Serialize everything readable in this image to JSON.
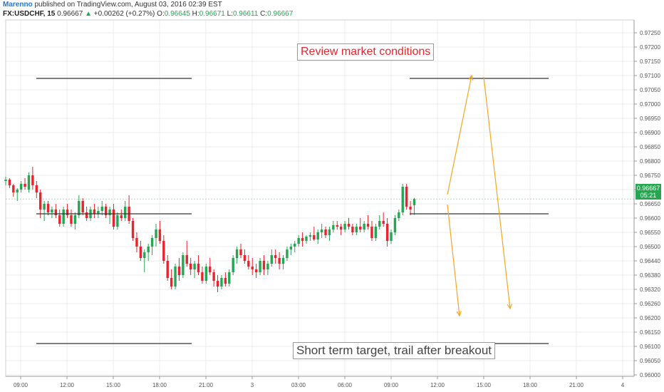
{
  "header": {
    "author": "Marenno",
    "published": " published on TradingView.com, August 03, 2016 02:39 EST",
    "symbol": "FX:USDCHF, 15",
    "last": "0.96667",
    "change": "+0.00262 (+0.27%)",
    "o_label": "O:",
    "o": "0.96645",
    "h_label": "H:",
    "h": "0.96671",
    "l_label": "L:",
    "l": "0.96611",
    "c_label": "C:",
    "c": "0.96667"
  },
  "annotations": {
    "top": "Review market conditions",
    "bottom": "Short term target, trail after breakout"
  },
  "price_label": {
    "value": "0.96667",
    "timer": "05:21"
  },
  "colors": {
    "up": "#26a651",
    "down": "#e6252d",
    "arrow": "#f5a623",
    "hline": "#333333",
    "grid": "#eeeeee"
  },
  "chart_data": {
    "type": "candlestick",
    "symbol": "FX:USDCHF",
    "interval": "15",
    "y_ticks": [
      "0.97250",
      "0.97200",
      "0.97150",
      "0.97100",
      "0.97050",
      "0.97000",
      "0.96950",
      "0.96900",
      "0.96850",
      "0.96800",
      "0.96750",
      "0.96700",
      "0.96650",
      "0.96600",
      "0.96550",
      "0.96500",
      "0.96440",
      "0.96380",
      "0.96320",
      "0.96260",
      "0.96200",
      "0.96150",
      "0.96100",
      "0.96050",
      "0.96000"
    ],
    "x_ticks": [
      "09:00",
      "12:00",
      "15:00",
      "18:00",
      "21:00",
      "3",
      "03:00",
      "06:00",
      "09:00",
      "12:00",
      "15:00",
      "18:00",
      "21:00",
      "4"
    ],
    "ohlc": [
      [
        0.9673,
        0.96745,
        0.96715,
        0.96735
      ],
      [
        0.96735,
        0.9674,
        0.96705,
        0.96715
      ],
      [
        0.96715,
        0.9672,
        0.96675,
        0.9669
      ],
      [
        0.9669,
        0.96705,
        0.9666,
        0.967
      ],
      [
        0.967,
        0.9673,
        0.9669,
        0.9672
      ],
      [
        0.9672,
        0.9674,
        0.967,
        0.9671
      ],
      [
        0.967,
        0.9676,
        0.9669,
        0.9675
      ],
      [
        0.9675,
        0.9678,
        0.967,
        0.96715
      ],
      [
        0.96715,
        0.9673,
        0.9667,
        0.9669
      ],
      [
        0.9669,
        0.967,
        0.966,
        0.9663
      ],
      [
        0.9663,
        0.9666,
        0.9659,
        0.9665
      ],
      [
        0.9665,
        0.9666,
        0.9661,
        0.9662
      ],
      [
        0.9662,
        0.9664,
        0.966,
        0.9663
      ],
      [
        0.9663,
        0.9665,
        0.966,
        0.9661
      ],
      [
        0.9661,
        0.9663,
        0.9657,
        0.9658
      ],
      [
        0.9658,
        0.9664,
        0.9657,
        0.9663
      ],
      [
        0.9663,
        0.9665,
        0.966,
        0.9661
      ],
      [
        0.9661,
        0.9663,
        0.9657,
        0.9658
      ],
      [
        0.9658,
        0.9662,
        0.9656,
        0.9661
      ],
      [
        0.9661,
        0.9668,
        0.966,
        0.9666
      ],
      [
        0.9666,
        0.9667,
        0.9661,
        0.9662
      ],
      [
        0.9662,
        0.9664,
        0.9659,
        0.966
      ],
      [
        0.966,
        0.9664,
        0.9659,
        0.9663
      ],
      [
        0.9663,
        0.9665,
        0.966,
        0.96615
      ],
      [
        0.96615,
        0.9664,
        0.966,
        0.96625
      ],
      [
        0.96625,
        0.9666,
        0.9661,
        0.9664
      ],
      [
        0.9664,
        0.9665,
        0.966,
        0.9661
      ],
      [
        0.9661,
        0.9664,
        0.9658,
        0.9663
      ],
      [
        0.9663,
        0.9665,
        0.9656,
        0.9657
      ],
      [
        0.9657,
        0.9662,
        0.9656,
        0.9661
      ],
      [
        0.9661,
        0.9663,
        0.9659,
        0.966
      ],
      [
        0.966,
        0.9666,
        0.9659,
        0.9664
      ],
      [
        0.9664,
        0.9668,
        0.9658,
        0.9659
      ],
      [
        0.9659,
        0.966,
        0.9652,
        0.9653
      ],
      [
        0.9653,
        0.9655,
        0.9648,
        0.965
      ],
      [
        0.965,
        0.9652,
        0.9645,
        0.9646
      ],
      [
        0.9646,
        0.9649,
        0.9641,
        0.9648
      ],
      [
        0.9648,
        0.9651,
        0.9645,
        0.965
      ],
      [
        0.965,
        0.9654,
        0.9647,
        0.9653
      ],
      [
        0.9653,
        0.9658,
        0.965,
        0.9656
      ],
      [
        0.9656,
        0.9659,
        0.9651,
        0.9652
      ],
      [
        0.9652,
        0.9654,
        0.9644,
        0.9645
      ],
      [
        0.9645,
        0.9647,
        0.9638,
        0.9639
      ],
      [
        0.9639,
        0.9642,
        0.9635,
        0.9636
      ],
      [
        0.9636,
        0.9644,
        0.9635,
        0.9643
      ],
      [
        0.9643,
        0.9646,
        0.9638,
        0.964
      ],
      [
        0.964,
        0.9648,
        0.9639,
        0.9647
      ],
      [
        0.9647,
        0.9652,
        0.9643,
        0.9644
      ],
      [
        0.9644,
        0.9646,
        0.964,
        0.9642
      ],
      [
        0.9642,
        0.9645,
        0.9639,
        0.9644
      ],
      [
        0.9644,
        0.9647,
        0.964,
        0.9641
      ],
      [
        0.9641,
        0.9643,
        0.9637,
        0.9638
      ],
      [
        0.9638,
        0.9644,
        0.9637,
        0.9643
      ],
      [
        0.9643,
        0.9646,
        0.964,
        0.9641
      ],
      [
        0.9641,
        0.9642,
        0.9636,
        0.9638
      ],
      [
        0.9638,
        0.964,
        0.9634,
        0.9636
      ],
      [
        0.9636,
        0.964,
        0.9635,
        0.9639
      ],
      [
        0.9639,
        0.9641,
        0.9636,
        0.9637
      ],
      [
        0.9637,
        0.9642,
        0.9636,
        0.9641
      ],
      [
        0.9641,
        0.9647,
        0.964,
        0.9646
      ],
      [
        0.9646,
        0.965,
        0.9644,
        0.9649
      ],
      [
        0.9649,
        0.9651,
        0.9646,
        0.9647
      ],
      [
        0.9647,
        0.9649,
        0.9644,
        0.9645
      ],
      [
        0.9645,
        0.9647,
        0.9642,
        0.9643
      ],
      [
        0.9643,
        0.9646,
        0.964,
        0.9642
      ],
      [
        0.9642,
        0.9644,
        0.9639,
        0.9641
      ],
      [
        0.9641,
        0.9646,
        0.964,
        0.9645
      ],
      [
        0.9645,
        0.9647,
        0.964,
        0.9642
      ],
      [
        0.9642,
        0.9645,
        0.964,
        0.9644
      ],
      [
        0.9644,
        0.9649,
        0.9643,
        0.9647
      ],
      [
        0.9647,
        0.9649,
        0.9644,
        0.9646
      ],
      [
        0.9646,
        0.9648,
        0.9642,
        0.9644
      ],
      [
        0.9644,
        0.9647,
        0.9642,
        0.9646
      ],
      [
        0.9646,
        0.965,
        0.9645,
        0.9649
      ],
      [
        0.9649,
        0.9651,
        0.9647,
        0.965
      ],
      [
        0.965,
        0.9652,
        0.9648,
        0.9651
      ],
      [
        0.9651,
        0.9654,
        0.965,
        0.9653
      ],
      [
        0.9653,
        0.9655,
        0.965,
        0.9652
      ],
      [
        0.9652,
        0.9654,
        0.9651,
        0.96535
      ],
      [
        0.96535,
        0.9655,
        0.9652,
        0.9654
      ],
      [
        0.9654,
        0.9657,
        0.9652,
        0.96525
      ],
      [
        0.96525,
        0.9656,
        0.9651,
        0.9655
      ],
      [
        0.9655,
        0.9658,
        0.9653,
        0.9656
      ],
      [
        0.9656,
        0.9657,
        0.9653,
        0.9654
      ],
      [
        0.9654,
        0.9657,
        0.9652,
        0.9656
      ],
      [
        0.9656,
        0.9659,
        0.9655,
        0.96575
      ],
      [
        0.96575,
        0.9659,
        0.9656,
        0.9657
      ],
      [
        0.9657,
        0.9658,
        0.9654,
        0.9656
      ],
      [
        0.9656,
        0.9659,
        0.9655,
        0.9658
      ],
      [
        0.9658,
        0.966,
        0.9656,
        0.9657
      ],
      [
        0.9657,
        0.9658,
        0.9654,
        0.9655
      ],
      [
        0.9655,
        0.9658,
        0.9654,
        0.9657
      ],
      [
        0.9657,
        0.966,
        0.9655,
        0.9656
      ],
      [
        0.9656,
        0.9659,
        0.9655,
        0.9658
      ],
      [
        0.9658,
        0.9661,
        0.9656,
        0.9657
      ],
      [
        0.9657,
        0.9659,
        0.9652,
        0.9653
      ],
      [
        0.9653,
        0.9658,
        0.9652,
        0.9657
      ],
      [
        0.9657,
        0.9661,
        0.9656,
        0.9659
      ],
      [
        0.9659,
        0.9662,
        0.9657,
        0.9658
      ],
      [
        0.9658,
        0.966,
        0.965,
        0.9652
      ],
      [
        0.9652,
        0.9656,
        0.9651,
        0.9655
      ],
      [
        0.9655,
        0.9661,
        0.9654,
        0.966
      ],
      [
        0.966,
        0.9663,
        0.9659,
        0.9662
      ],
      [
        0.9662,
        0.9672,
        0.9661,
        0.9671
      ],
      [
        0.9671,
        0.9672,
        0.9663,
        0.9664
      ],
      [
        0.9664,
        0.9666,
        0.9661,
        0.9663
      ],
      [
        0.96645,
        0.96671,
        0.96611,
        0.96667
      ]
    ],
    "horizontal_levels": [
      0.9709,
      0.96615,
      0.9616
    ],
    "current_price": 0.96667,
    "grid": true
  }
}
